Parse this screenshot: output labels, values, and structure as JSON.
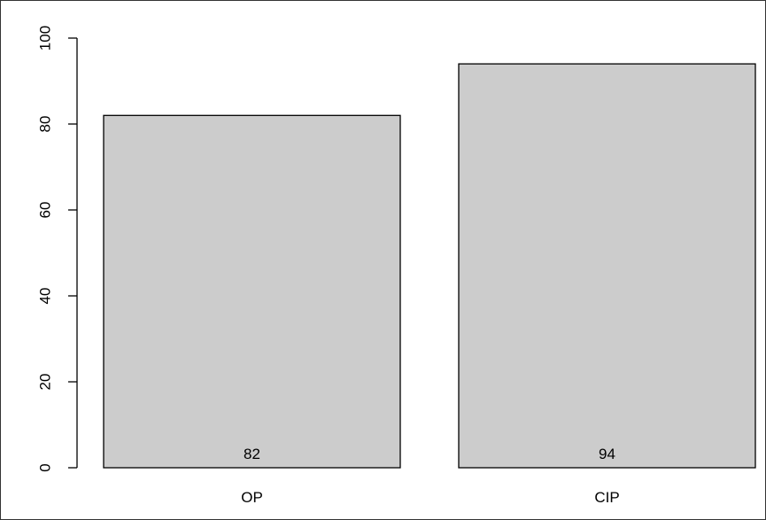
{
  "chart_data": {
    "type": "bar",
    "categories": [
      "OP",
      "CIP"
    ],
    "values": [
      82,
      94
    ],
    "data_labels": [
      "82",
      "94"
    ],
    "title": "",
    "xlabel": "",
    "ylabel": "",
    "ylim": [
      0,
      100
    ],
    "yticks": [
      0,
      20,
      40,
      60,
      80,
      100
    ],
    "ytick_labels": [
      "0",
      "20",
      "40",
      "60",
      "80",
      "100"
    ],
    "grid": false,
    "legend": "none",
    "colors": {
      "bar_fill": "#cccccc",
      "bar_stroke": "#000000",
      "axis": "#000000",
      "background": "#ffffff"
    }
  }
}
